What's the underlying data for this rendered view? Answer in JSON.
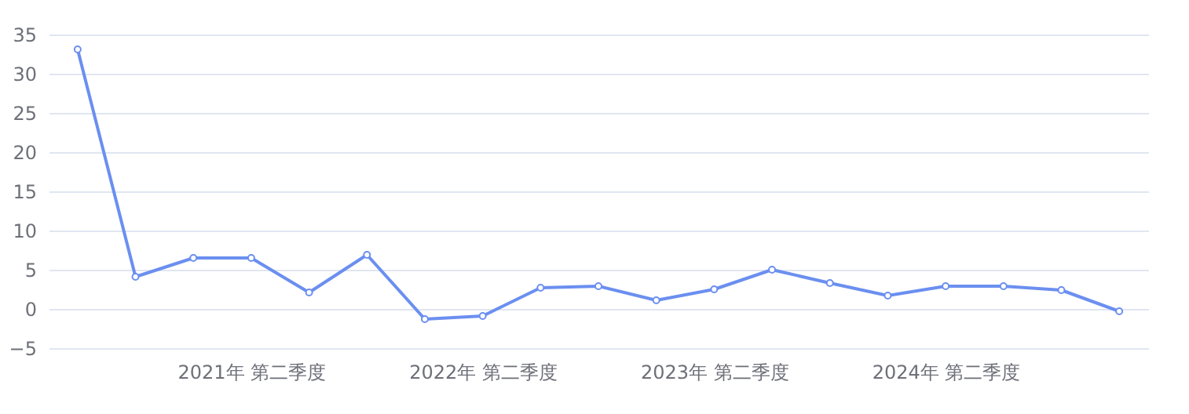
{
  "chart_data": {
    "type": "line",
    "categories": [
      null,
      null,
      null,
      "2021年 第二季度",
      null,
      null,
      null,
      "2022年 第二季度",
      null,
      null,
      null,
      "2023年 第二季度",
      null,
      null,
      null,
      "2024年 第二季度",
      null,
      null,
      null
    ],
    "series": [
      {
        "color": "#6b8ff0",
        "values": [
          33.1,
          4.1,
          6.5,
          6.5,
          2.1,
          6.9,
          -1.3,
          -0.9,
          2.7,
          2.9,
          1.1,
          2.5,
          5.0,
          3.3,
          1.7,
          2.9,
          2.9,
          2.4,
          -0.3
        ]
      }
    ],
    "ylim": [
      -5,
      35
    ],
    "yticks": [
      -5,
      0,
      5,
      10,
      15,
      20,
      25,
      30,
      35
    ],
    "grid": "y",
    "marker": "circle",
    "line_style": "solid"
  }
}
